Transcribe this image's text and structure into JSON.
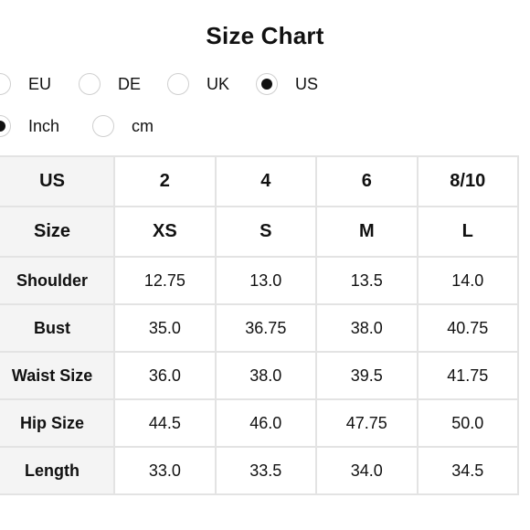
{
  "title": "Size Chart",
  "region_options": [
    {
      "label": "EU",
      "checked": false
    },
    {
      "label": "DE",
      "checked": false
    },
    {
      "label": "UK",
      "checked": false
    },
    {
      "label": "US",
      "checked": true
    }
  ],
  "unit_options": [
    {
      "label": "Inch",
      "checked": true
    },
    {
      "label": "cm",
      "checked": false
    }
  ],
  "table": {
    "header_rows": [
      {
        "label": "US",
        "values": [
          "2",
          "4",
          "6",
          "8/10"
        ]
      },
      {
        "label": "Size",
        "values": [
          "XS",
          "S",
          "M",
          "L"
        ]
      }
    ],
    "rows": [
      {
        "label": "Shoulder",
        "values": [
          "12.75",
          "13.0",
          "13.5",
          "14.0"
        ]
      },
      {
        "label": "Bust",
        "values": [
          "35.0",
          "36.75",
          "38.0",
          "40.75"
        ]
      },
      {
        "label": "Waist Size",
        "values": [
          "36.0",
          "38.0",
          "39.5",
          "41.75"
        ]
      },
      {
        "label": "Hip Size",
        "values": [
          "44.5",
          "46.0",
          "47.75",
          "50.0"
        ]
      },
      {
        "label": "Length",
        "values": [
          "33.0",
          "33.5",
          "34.0",
          "34.5"
        ]
      }
    ]
  }
}
